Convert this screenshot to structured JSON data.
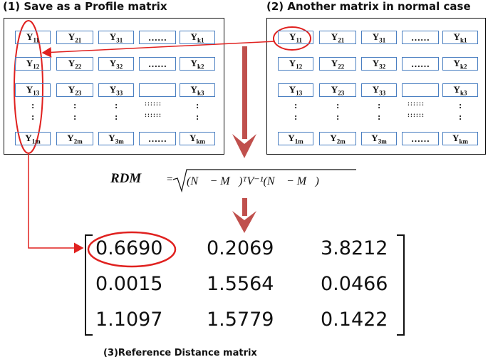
{
  "headings": {
    "profile": "(1) Save as a Profile matrix",
    "another": "(2) Another matrix in normal case",
    "reference": "(3)Reference Distance matrix"
  },
  "grid": {
    "rows": [
      [
        "Y11",
        "Y21",
        "Y31",
        "……",
        "Yk1"
      ],
      [
        "Y12",
        "Y22",
        "Y32",
        "……",
        "Yk2"
      ],
      [
        "Y13",
        "Y23",
        "Y33",
        "",
        "Yk3"
      ],
      [
        "Y1m",
        "Y2m",
        "Y3m",
        "……",
        "Ykm"
      ]
    ],
    "vdots": ":",
    "gap_dots": "::::::"
  },
  "formula": {
    "lhs": "RDM",
    "eq": "=",
    "rhs": "(N⃗ − M⃗)ᵀV⁻¹(N⃗ − M⃗)"
  },
  "distance_matrix": [
    [
      "0.6690",
      "0.2069",
      "3.8212"
    ],
    [
      "0.0015",
      "1.5564",
      "0.0466"
    ],
    [
      "1.1097",
      "1.5779",
      "0.1422"
    ]
  ],
  "colors": {
    "cell_border": "#4a7fc1",
    "highlight": "#e0211f",
    "arrow_fill": "#c0504d"
  }
}
